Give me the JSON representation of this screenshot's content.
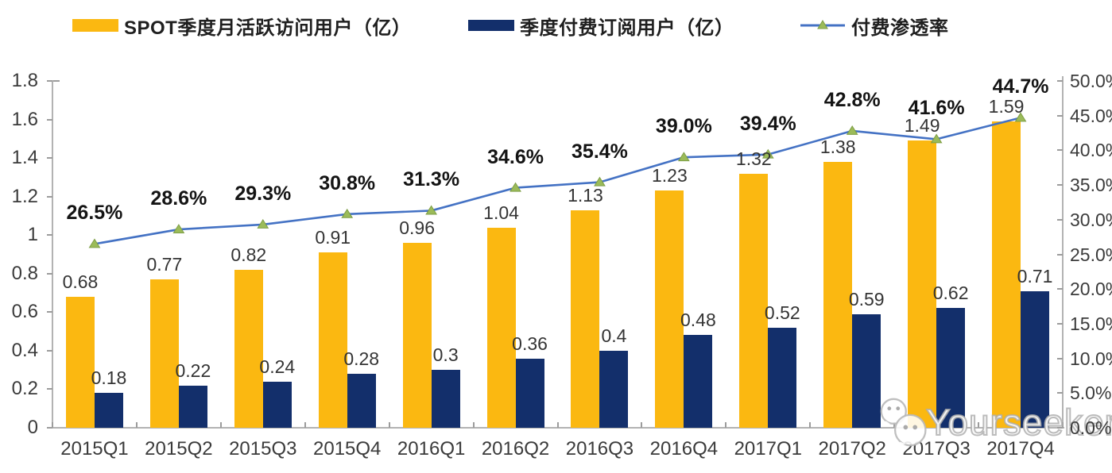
{
  "legend": {
    "items": [
      {
        "label": "SPOT季度月活跃访问用户（亿）",
        "swatch": "yellow-bar-swatch"
      },
      {
        "label": "季度付费订阅用户（亿）",
        "swatch": "navy-bar-swatch"
      },
      {
        "label": "付费渗透率",
        "swatch": "line-marker-swatch"
      }
    ]
  },
  "colors": {
    "mau_bar": "#FBB811",
    "subs_bar": "#132F6B",
    "line": "#4472C4",
    "marker": "#9BBB59",
    "marker_edge": "#7E9E46",
    "axis": "#B3B3B3",
    "tick": "#9C9C9C"
  },
  "chart_data": {
    "type": "combo-bar-line",
    "categories": [
      "2015Q1",
      "2015Q2",
      "2015Q3",
      "2015Q4",
      "2016Q1",
      "2016Q2",
      "2016Q3",
      "2016Q4",
      "2017Q1",
      "2017Q2",
      "2017Q3",
      "2017Q4"
    ],
    "series": [
      {
        "name": "SPOT季度月活跃访问用户（亿）",
        "type": "bar",
        "axis": "left",
        "values": [
          0.68,
          0.77,
          0.82,
          0.91,
          0.96,
          1.04,
          1.13,
          1.23,
          1.32,
          1.38,
          1.49,
          1.59
        ],
        "labels": [
          "0.68",
          "0.77",
          "0.82",
          "0.91",
          "0.96",
          "1.04",
          "1.13",
          "1.23",
          "1.32",
          "1.38",
          "1.49",
          "1.59"
        ]
      },
      {
        "name": "季度付费订阅用户（亿）",
        "type": "bar",
        "axis": "left",
        "values": [
          0.18,
          0.22,
          0.24,
          0.28,
          0.3,
          0.36,
          0.4,
          0.48,
          0.52,
          0.59,
          0.62,
          0.71
        ],
        "labels": [
          "0.18",
          "0.22",
          "0.24",
          "0.28",
          "0.3",
          "0.36",
          "0.4",
          "0.48",
          "0.52",
          "0.59",
          "0.62",
          "0.71"
        ]
      },
      {
        "name": "付费渗透率",
        "type": "line",
        "axis": "right",
        "values": [
          26.5,
          28.6,
          29.3,
          30.8,
          31.3,
          34.6,
          35.4,
          39.0,
          39.4,
          42.8,
          41.6,
          44.7
        ],
        "labels": [
          "26.5%",
          "28.6%",
          "29.3%",
          "30.8%",
          "31.3%",
          "34.6%",
          "35.4%",
          "39.0%",
          "39.4%",
          "42.8%",
          "41.6%",
          "44.7%"
        ]
      }
    ],
    "left_axis": {
      "min": 0,
      "max": 1.8,
      "tick_labels": [
        "0",
        "0.2",
        "0.4",
        "0.6",
        "0.8",
        "1",
        "1.2",
        "1.4",
        "1.6",
        "1.8"
      ]
    },
    "right_axis": {
      "min": 0,
      "max": 50,
      "tick_labels": [
        "0.0%",
        "5.0%",
        "10.0%",
        "15.0%",
        "20.0%",
        "25.0%",
        "30.0%",
        "35.0%",
        "40.0%",
        "45.0%",
        "50.0%"
      ]
    },
    "grid": false,
    "legend_position": "top"
  },
  "watermark": {
    "text": "Yourseeker",
    "icon": "wechat-icon"
  }
}
